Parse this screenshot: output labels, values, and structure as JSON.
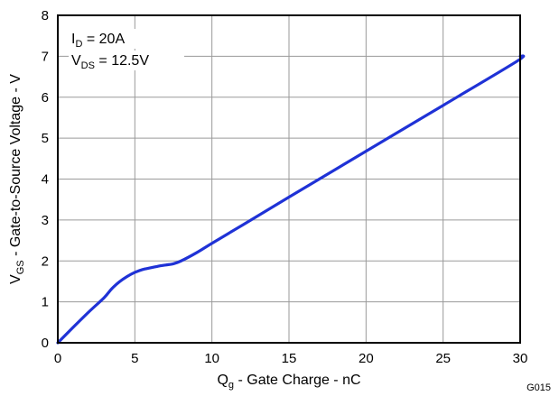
{
  "chart_data": {
    "type": "line",
    "xlabel": {
      "main": "Q",
      "sub": "g",
      "rest": " - Gate Charge - nC"
    },
    "ylabel": {
      "main": "V",
      "sub": "GS",
      "rest": " - Gate-to-Source Voltage - V"
    },
    "xlim": [
      0,
      30
    ],
    "ylim": [
      0,
      8
    ],
    "xticks": [
      0,
      5,
      10,
      15,
      20,
      25,
      30
    ],
    "yticks": [
      0,
      1,
      2,
      3,
      4,
      5,
      6,
      7,
      8
    ],
    "grid": true,
    "annotations": [
      {
        "main": "I",
        "sub": "D",
        "rest": " = 20A"
      },
      {
        "main": "V",
        "sub": "DS",
        "rest": " = 12.5V"
      }
    ],
    "figure_code": "G015",
    "series": [
      {
        "color": "#1f32d6",
        "x": [
          0,
          1,
          2,
          3,
          3.5,
          4,
          4.5,
          5,
          5.5,
          6,
          6.5,
          7,
          7.5,
          8,
          9,
          10,
          12,
          15,
          20,
          25,
          29.8,
          30
        ],
        "y": [
          0,
          0.38,
          0.75,
          1.1,
          1.32,
          1.49,
          1.62,
          1.72,
          1.79,
          1.83,
          1.87,
          1.9,
          1.93,
          2.0,
          2.2,
          2.43,
          2.88,
          3.56,
          4.68,
          5.8,
          6.88,
          7.0
        ]
      }
    ]
  }
}
